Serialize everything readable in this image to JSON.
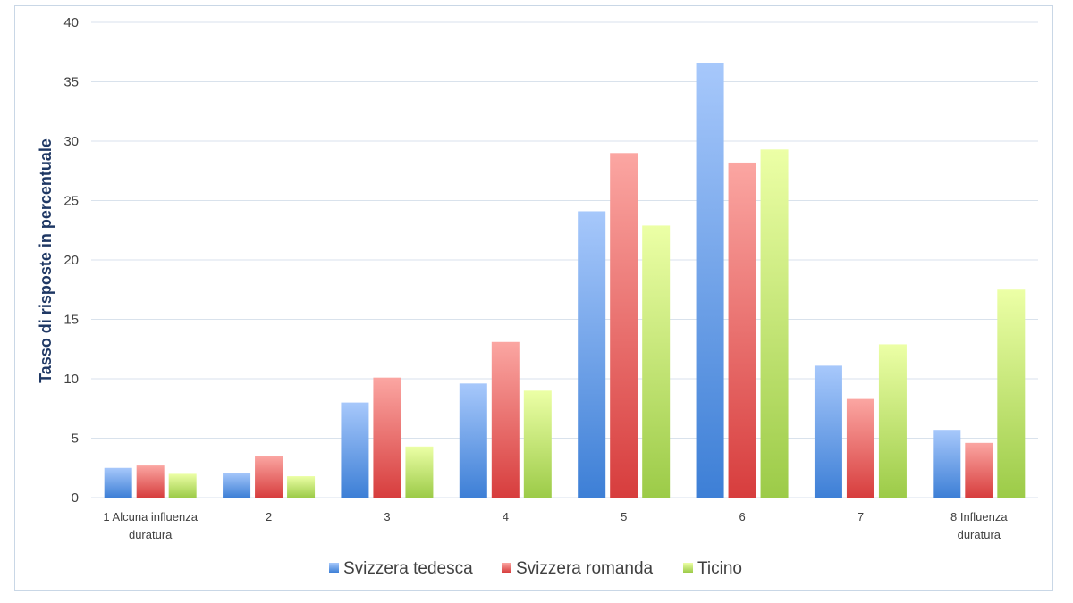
{
  "chart_data": {
    "type": "bar",
    "title": "",
    "xlabel": "",
    "ylabel": "Tasso di risposte in percentuale",
    "ylim": [
      0,
      40
    ],
    "yticks": [
      0,
      5,
      10,
      15,
      20,
      25,
      30,
      35,
      40
    ],
    "grid": true,
    "legend_position": "bottom",
    "categories": [
      [
        "1 Alcuna influenza",
        "duratura"
      ],
      [
        "2"
      ],
      [
        "3"
      ],
      [
        "4"
      ],
      [
        "5"
      ],
      [
        "6"
      ],
      [
        "7"
      ],
      [
        "8 Influenza",
        "duratura"
      ]
    ],
    "series": [
      {
        "name": "Svizzera tedesca",
        "color": "#4a86d8",
        "values": [
          2.5,
          2.1,
          8.0,
          9.6,
          24.1,
          36.6,
          11.1,
          5.7
        ]
      },
      {
        "name": "Svizzera romanda",
        "color": "#d94545",
        "values": [
          2.7,
          3.5,
          10.1,
          13.1,
          29.0,
          28.2,
          8.3,
          4.6
        ]
      },
      {
        "name": "Ticino",
        "color": "#9dcc4a",
        "values": [
          2.0,
          1.8,
          4.3,
          9.0,
          22.9,
          29.3,
          12.9,
          17.5
        ]
      }
    ]
  }
}
